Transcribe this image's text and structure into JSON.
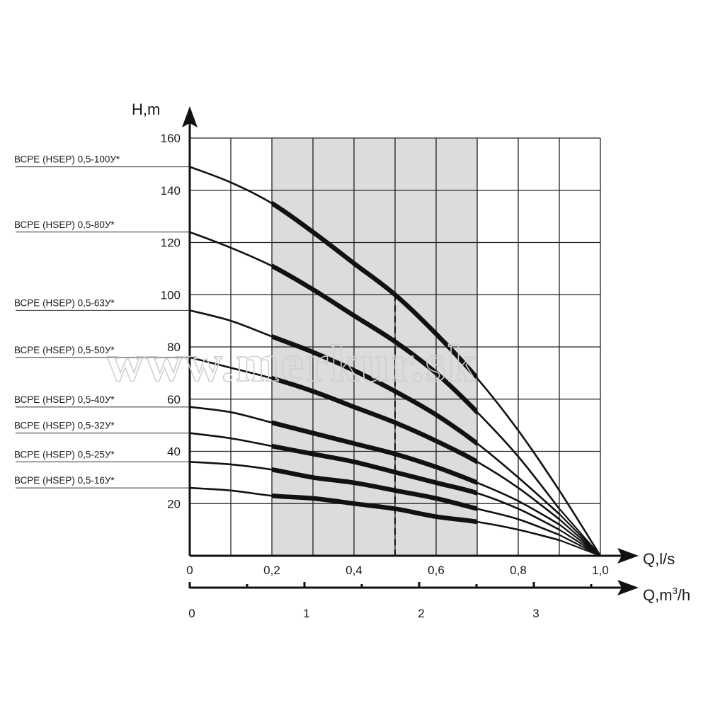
{
  "watermark": "www.merkur.sk",
  "chart_data": {
    "type": "line",
    "xlabel": "Q,l/s",
    "ylabel": "H,m",
    "xlabel2": "Q,m³/h",
    "xlim": [
      0,
      1.0
    ],
    "ylim": [
      0,
      160
    ],
    "grid": true,
    "x_ticks": [
      "0",
      "0,2",
      "0,4",
      "0,6",
      "0,8",
      "1,0"
    ],
    "x_ticks_values": [
      0,
      0.2,
      0.4,
      0.6,
      0.8,
      1.0
    ],
    "y_ticks": [
      "20",
      "40",
      "60",
      "80",
      "100",
      "120",
      "140",
      "160"
    ],
    "y_ticks_values": [
      20,
      40,
      60,
      80,
      100,
      120,
      140,
      160
    ],
    "x2_ticks": [
      "0",
      "1",
      "2",
      "3"
    ],
    "x2_ticks_values": [
      0,
      1,
      2,
      3
    ],
    "x2_minor_values": [
      0.5,
      1.5,
      2.5,
      3.5
    ],
    "operating_range": [
      0.2,
      0.7
    ],
    "nominal_flow": 0.5,
    "series": [
      {
        "name": "ВСРЕ (HSEP) 0,5-100У*",
        "x": [
          0,
          0.1,
          0.2,
          0.3,
          0.4,
          0.5,
          0.6,
          0.7,
          0.8,
          0.9,
          1.0
        ],
        "y": [
          149,
          143,
          135,
          124,
          112,
          100,
          85,
          68,
          48,
          25,
          0
        ]
      },
      {
        "name": "ВСРЕ (HSEP) 0,5-80У*",
        "x": [
          0,
          0.1,
          0.2,
          0.3,
          0.4,
          0.5,
          0.6,
          0.7,
          0.8,
          0.9
        ],
        "y": [
          124,
          118,
          111,
          102,
          92,
          82,
          70,
          55,
          38,
          18
        ]
      },
      {
        "name": "ВСРЕ (HSEP) 0,5-63У*",
        "x": [
          0,
          0.1,
          0.2,
          0.3,
          0.4,
          0.5,
          0.6,
          0.7,
          0.8,
          0.9
        ],
        "y": [
          94,
          90,
          84,
          78,
          71,
          63,
          54,
          43,
          30,
          16
        ]
      },
      {
        "name": "ВСРЕ (HSEP) 0,5-50У*",
        "x": [
          0,
          0.1,
          0.2,
          0.3,
          0.4,
          0.5,
          0.6,
          0.7,
          0.8,
          0.9
        ],
        "y": [
          76,
          72,
          68,
          63,
          57,
          51,
          44,
          36,
          26,
          14
        ]
      },
      {
        "name": "ВСРЕ (HSEP) 0,5-40У*",
        "x": [
          0,
          0.1,
          0.2,
          0.3,
          0.4,
          0.5,
          0.6,
          0.7,
          0.8,
          0.9
        ],
        "y": [
          57,
          55,
          51,
          47,
          43,
          39,
          34,
          28,
          21,
          12
        ]
      },
      {
        "name": "ВСРЕ (HSEP) 0,5-32У*",
        "x": [
          0,
          0.1,
          0.2,
          0.3,
          0.4,
          0.5,
          0.6,
          0.7,
          0.8,
          0.9
        ],
        "y": [
          47,
          45,
          42,
          39,
          36,
          32,
          28,
          24,
          18,
          10
        ]
      },
      {
        "name": "ВСРЕ (HSEP) 0,5-25У*",
        "x": [
          0,
          0.1,
          0.2,
          0.3,
          0.4,
          0.5,
          0.6,
          0.7,
          0.8,
          0.9
        ],
        "y": [
          36,
          35,
          33,
          30,
          28,
          25,
          22,
          18,
          14,
          8
        ]
      },
      {
        "name": "ВСРЕ (HSEP) 0,5-16У*",
        "x": [
          0,
          0.1,
          0.2,
          0.3,
          0.4,
          0.5,
          0.6,
          0.7,
          0.8,
          0.9
        ],
        "y": [
          26,
          25,
          23,
          22,
          20,
          18,
          15,
          13,
          10,
          6
        ]
      }
    ]
  }
}
